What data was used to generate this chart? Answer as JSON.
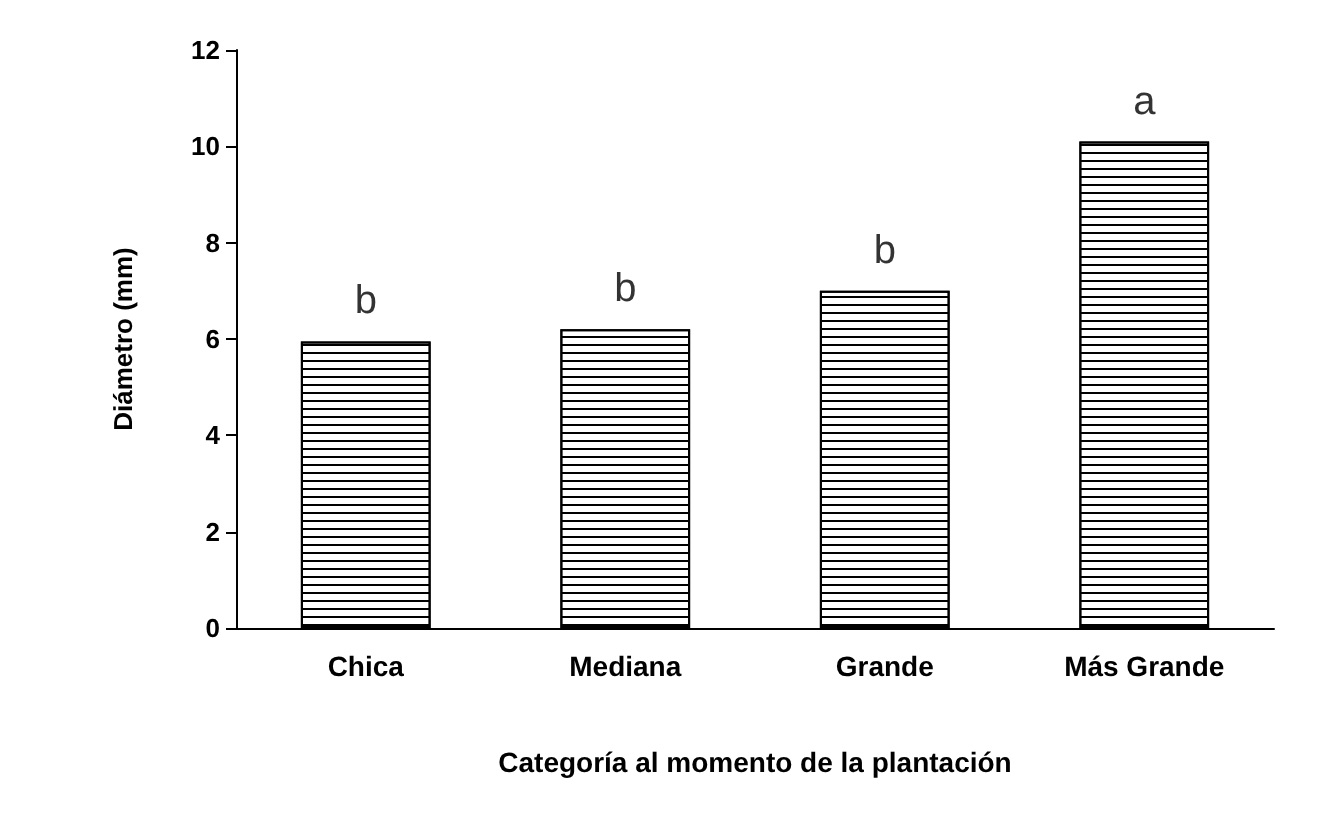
{
  "chart_data": {
    "type": "bar",
    "xlabel": "Categoría al momento de la plantación",
    "ylabel": "Diámetro (mm)",
    "categories": [
      "Chica",
      "Mediana",
      "Grande",
      "Más Grande"
    ],
    "values": [
      5.95,
      6.2,
      7.0,
      10.1
    ],
    "color": "#000000",
    "ylim": [
      0,
      12
    ],
    "yticks": [
      0,
      2,
      4,
      6,
      8,
      10,
      12
    ],
    "grid": false,
    "annotations": [
      {
        "text": "b",
        "x": "Chica",
        "y": 5.95
      },
      {
        "text": "b",
        "x": "Mediana",
        "y": 6.2
      },
      {
        "text": "b",
        "x": "Grande",
        "y": 7.0
      },
      {
        "text": "a",
        "x": "Más Grande",
        "y": 10.1
      }
    ]
  }
}
